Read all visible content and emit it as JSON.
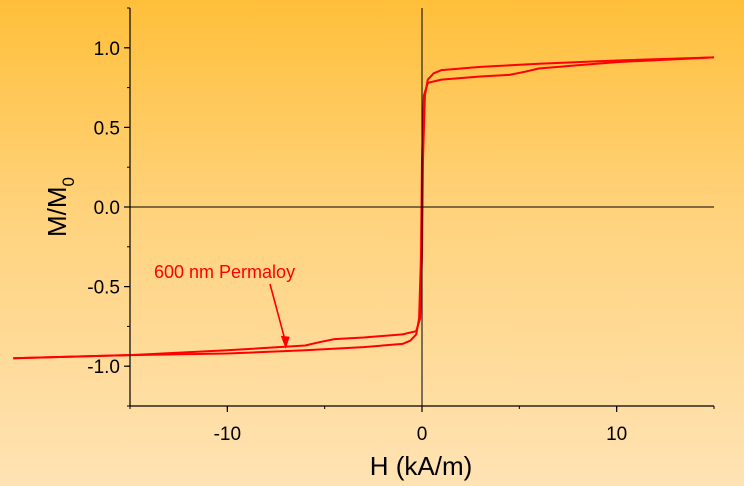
{
  "chart_data": {
    "type": "line",
    "title": "",
    "xlabel": "H (kA/m)",
    "ylabel": {
      "main": "M/M",
      "subscript": "0"
    },
    "xlim": [
      -15,
      15
    ],
    "ylim": [
      -1.25,
      1.25
    ],
    "xticks": [
      -10,
      0,
      10
    ],
    "xtick_labels": [
      "-10",
      "0",
      "10"
    ],
    "yticks": [
      -1.0,
      -0.5,
      0.0,
      0.5,
      1.0
    ],
    "ytick_labels": [
      "-1.0",
      "-0.5",
      "0.0",
      "0.5",
      "1.0"
    ],
    "zero_lines": true,
    "grid": false,
    "line_color": "#ff0000",
    "series": [
      {
        "branch": "upper",
        "x": [
          -21,
          -15,
          -10,
          -6,
          -5.3,
          -4.5,
          -3,
          -1,
          -0.3,
          -0.1,
          0,
          0.05,
          0.15,
          0.3,
          0.6,
          1,
          3,
          6,
          8,
          10,
          15
        ],
        "y": [
          -0.95,
          -0.93,
          -0.9,
          -0.87,
          -0.85,
          -0.83,
          -0.82,
          -0.8,
          -0.78,
          -0.7,
          -0.3,
          0.3,
          0.7,
          0.8,
          0.84,
          0.86,
          0.88,
          0.9,
          0.91,
          0.92,
          0.94
        ]
      },
      {
        "branch": "lower",
        "x": [
          15,
          10,
          8,
          6,
          5.3,
          4.5,
          3,
          1,
          0.3,
          0.1,
          0,
          -0.05,
          -0.15,
          -0.3,
          -0.6,
          -1,
          -3,
          -6,
          -8,
          -10,
          -15,
          -21
        ],
        "y": [
          0.94,
          0.91,
          0.89,
          0.87,
          0.85,
          0.83,
          0.82,
          0.8,
          0.78,
          0.7,
          0.3,
          -0.3,
          -0.7,
          -0.8,
          -0.84,
          -0.86,
          -0.88,
          -0.9,
          -0.91,
          -0.92,
          -0.93,
          -0.95
        ]
      }
    ],
    "annotation": {
      "text": "600 nm Permaloy",
      "color": "#ff0000",
      "arrow_to": {
        "x": -7,
        "y": -0.89
      }
    }
  }
}
